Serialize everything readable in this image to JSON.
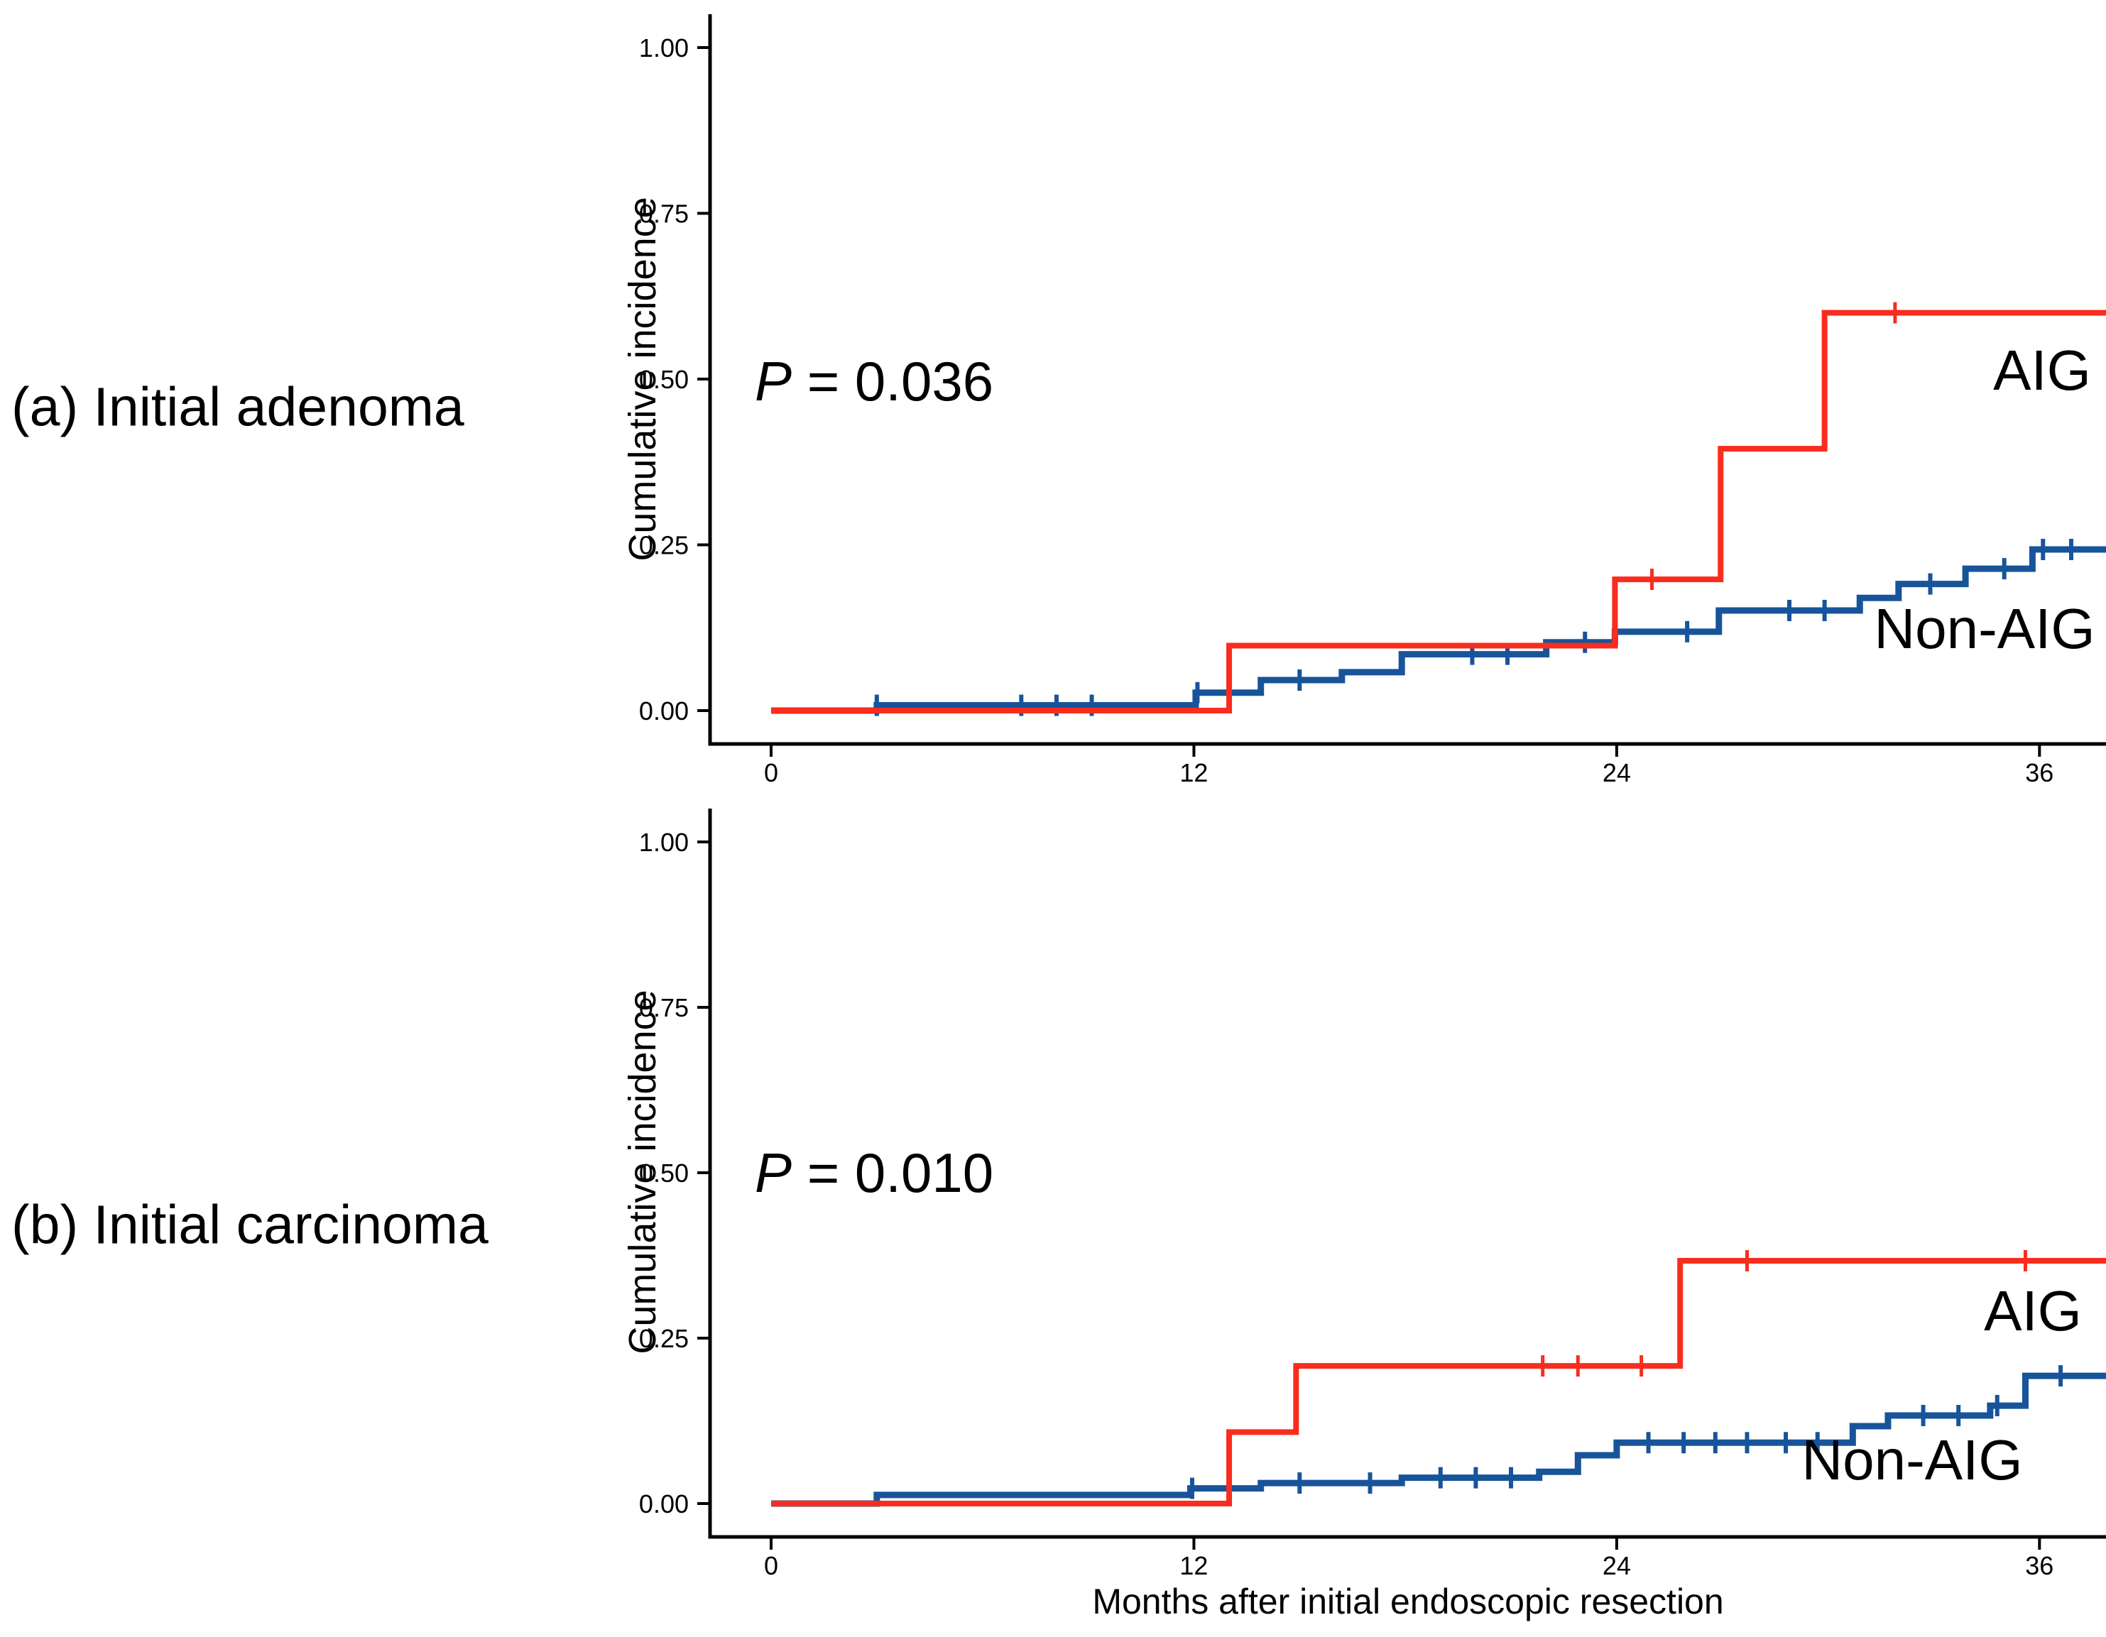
{
  "figure": {
    "x_axis_label": "Months after initial endoscopic resection",
    "background_color": "#ffffff",
    "axis_color": "#000000",
    "text_color": "#000000",
    "aig_color": "#f92d1e",
    "non_aig_color": "#17549a"
  },
  "chart_data": [
    {
      "type": "line",
      "subtype": "kaplan_meier_cumulative_incidence_step",
      "panel_label": "(a) Initial adenoma",
      "p_italic": "P",
      "p_rest": " = 0.036",
      "ylabel": "Cumulative incidence",
      "xlim": [
        -1.7,
        37.9
      ],
      "ylim": [
        -0.05,
        1.05
      ],
      "grid": false,
      "legend_position": "labels_annotated_on_plot",
      "x_tick_values": [
        0,
        12,
        24,
        36
      ],
      "x_tick_labels": [
        "0",
        "12",
        "24",
        "36"
      ],
      "y_tick_values": [
        0,
        0.25,
        0.5,
        0.75,
        1.0
      ],
      "y_tick_labels": [
        "0.00",
        "0.25",
        "0.50",
        "0.75",
        "1.00"
      ],
      "series": [
        {
          "name": "Non-AIG",
          "color": "#17549a",
          "start": [
            0,
            0
          ],
          "end_month": 37.9,
          "steps": [
            [
              3.0,
              0.008
            ],
            [
              12.05,
              0.027
            ],
            [
              13.9,
              0.046
            ],
            [
              16.2,
              0.058
            ],
            [
              17.9,
              0.085
            ],
            [
              22.0,
              0.103
            ],
            [
              23.95,
              0.119
            ],
            [
              26.9,
              0.151
            ],
            [
              30.9,
              0.17
            ],
            [
              32.0,
              0.191
            ],
            [
              33.9,
              0.214
            ],
            [
              35.8,
              0.243
            ]
          ],
          "censor_marks": [
            [
              3.0,
              0.008
            ],
            [
              7.1,
              0.008
            ],
            [
              8.1,
              0.008
            ],
            [
              9.1,
              0.008
            ],
            [
              12.1,
              0.027
            ],
            [
              15.0,
              0.046
            ],
            [
              19.9,
              0.085
            ],
            [
              20.9,
              0.085
            ],
            [
              23.1,
              0.103
            ],
            [
              26.0,
              0.119
            ],
            [
              28.9,
              0.151
            ],
            [
              29.9,
              0.151
            ],
            [
              32.9,
              0.191
            ],
            [
              35.0,
              0.214
            ],
            [
              36.1,
              0.243
            ],
            [
              36.9,
              0.243
            ]
          ]
        },
        {
          "name": "AIG",
          "color": "#f92d1e",
          "start": [
            0,
            0
          ],
          "end_month": 37.9,
          "steps": [
            [
              13.0,
              0.098
            ],
            [
              23.95,
              0.198
            ],
            [
              26.95,
              0.395
            ],
            [
              29.9,
              0.6
            ]
          ],
          "censor_marks": [
            [
              25.0,
              0.198
            ],
            [
              31.9,
              0.6
            ]
          ]
        }
      ]
    },
    {
      "type": "line",
      "subtype": "kaplan_meier_cumulative_incidence_step",
      "panel_label": "(b) Initial carcinoma",
      "p_italic": "P",
      "p_rest": " = 0.010",
      "ylabel": "Cumulative incidence",
      "xlim": [
        -1.7,
        37.9
      ],
      "ylim": [
        -0.05,
        1.05
      ],
      "grid": false,
      "legend_position": "labels_annotated_on_plot",
      "x_tick_values": [
        0,
        12,
        24,
        36
      ],
      "x_tick_labels": [
        "0",
        "12",
        "24",
        "36"
      ],
      "y_tick_values": [
        0,
        0.25,
        0.5,
        0.75,
        1.0
      ],
      "y_tick_labels": [
        "0.00",
        "0.25",
        "0.50",
        "0.75",
        "1.00"
      ],
      "series": [
        {
          "name": "Non-AIG",
          "color": "#17549a",
          "start": [
            0,
            0
          ],
          "end_month": 37.9,
          "steps": [
            [
              3.0,
              0.013
            ],
            [
              11.9,
              0.023
            ],
            [
              13.9,
              0.031
            ],
            [
              17.9,
              0.039
            ],
            [
              21.8,
              0.048
            ],
            [
              22.9,
              0.073
            ],
            [
              24.0,
              0.092
            ],
            [
              30.7,
              0.117
            ],
            [
              31.7,
              0.133
            ],
            [
              34.6,
              0.148
            ],
            [
              35.6,
              0.193
            ]
          ],
          "censor_marks": [
            [
              11.95,
              0.023
            ],
            [
              15.0,
              0.031
            ],
            [
              17.0,
              0.031
            ],
            [
              19.0,
              0.039
            ],
            [
              20.0,
              0.039
            ],
            [
              21.0,
              0.039
            ],
            [
              24.9,
              0.092
            ],
            [
              25.9,
              0.092
            ],
            [
              26.8,
              0.092
            ],
            [
              27.7,
              0.092
            ],
            [
              28.8,
              0.092
            ],
            [
              29.7,
              0.092
            ],
            [
              32.7,
              0.133
            ],
            [
              33.7,
              0.133
            ],
            [
              34.8,
              0.148
            ],
            [
              36.6,
              0.193
            ]
          ]
        },
        {
          "name": "AIG",
          "color": "#f92d1e",
          "start": [
            0,
            0
          ],
          "end_month": 37.9,
          "steps": [
            [
              13.0,
              0.108
            ],
            [
              14.9,
              0.208
            ],
            [
              25.8,
              0.367
            ]
          ],
          "censor_marks": [
            [
              21.9,
              0.208
            ],
            [
              22.9,
              0.208
            ],
            [
              24.7,
              0.208
            ],
            [
              27.7,
              0.367
            ],
            [
              35.6,
              0.367
            ]
          ]
        }
      ]
    }
  ]
}
